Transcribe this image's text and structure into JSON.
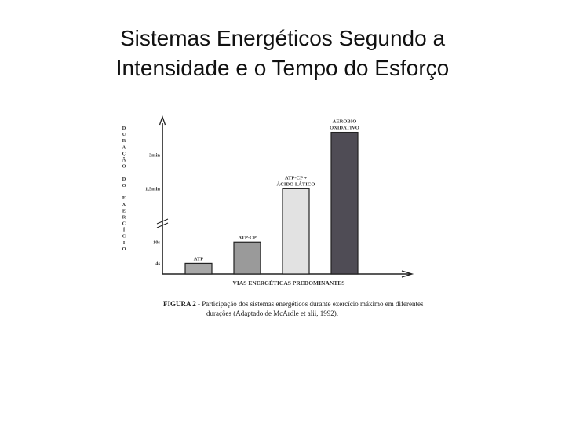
{
  "slide": {
    "title_line1": "Sistemas Energéticos Segundo a",
    "title_line2": "Intensidade e o Tempo do Esforço"
  },
  "figure": {
    "caption_label": "FIGURA 2",
    "caption_line1": " - Participação dos sistemas energéticos durante exercício máximo em diferentes",
    "caption_line2": "durações (Adaptado de McArdle et alii, 1992)."
  },
  "chart_data": {
    "type": "bar",
    "categories": [
      "ATP",
      "ATP-CP",
      "ATP-CP + ÁCIDO LÁTICO",
      "AERÓBIO OXIDATIVO"
    ],
    "category_label_lines": [
      [
        "ATP"
      ],
      [
        "ATP-CP"
      ],
      [
        "ATP-CP +",
        "ÁCIDO LÁTICO"
      ],
      [
        "AERÓBIO",
        "OXIDATIVO"
      ]
    ],
    "values": [
      "4s",
      "10s",
      "1,5min",
      "3min+"
    ],
    "value_levels": [
      0.07,
      0.21,
      0.56,
      0.93
    ],
    "bar_colors": [
      "#a8a8a8",
      "#9a9a9a",
      "#e2e2e2",
      "#4f4c55"
    ],
    "xlabel": "VIAS ENERGÉTICAS PREDOMINANTES",
    "ylabel_letters": [
      "D",
      "U",
      "R",
      "A",
      "Ç",
      "Ã",
      "O",
      "",
      "D",
      "O",
      "",
      "E",
      "X",
      "E",
      "R",
      "C",
      "Í",
      "C",
      "I",
      "O"
    ],
    "y_ticks": [
      {
        "label": "3min",
        "level": 0.78
      },
      {
        "label": "1,5min",
        "level": 0.56
      },
      {
        "label": "10s",
        "level": 0.21
      },
      {
        "label": "4s",
        "level": 0.07
      }
    ],
    "axis_break": true,
    "ylim": [
      0,
      1
    ],
    "grid": false,
    "legend": "none"
  }
}
